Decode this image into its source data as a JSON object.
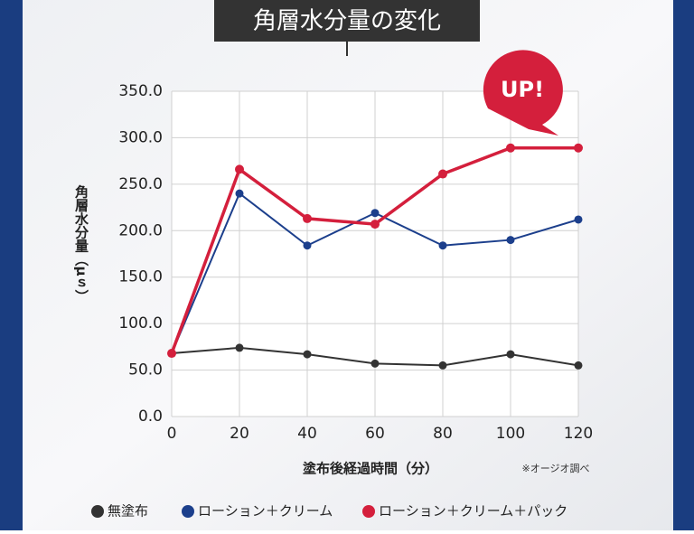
{
  "chart_data": {
    "type": "line",
    "title": "角層水分量の変化",
    "annotation": "UP!",
    "x_label": "塗布後経過時間（分）",
    "y_label": "角層水分量（μｓ）",
    "note": "※オージオ調べ",
    "x": [
      0,
      20,
      40,
      60,
      80,
      100,
      120
    ],
    "xlim": [
      0,
      120
    ],
    "xticks": [
      0,
      20,
      40,
      60,
      80,
      100,
      120
    ],
    "ylim": [
      0,
      350
    ],
    "yticks": [
      {
        "value": 0,
        "label": "0.0"
      },
      {
        "value": 50,
        "label": "50.0"
      },
      {
        "value": 100,
        "label": "100.0"
      },
      {
        "value": 150,
        "label": "150.0"
      },
      {
        "value": 200,
        "label": "200.0"
      },
      {
        "value": 250,
        "label": "250.0"
      },
      {
        "value": 300,
        "label": "300.0"
      },
      {
        "value": 350,
        "label": "350.0"
      }
    ],
    "grid": true,
    "series": [
      {
        "name": "無塗布",
        "color": "#333333",
        "values": [
          68,
          74,
          67,
          57,
          55,
          67,
          55
        ]
      },
      {
        "name": "ローション＋クリーム",
        "color": "#1c3f8c",
        "values": [
          68,
          240,
          184,
          219,
          184,
          190,
          212
        ]
      },
      {
        "name": "ローション＋クリーム＋パック",
        "color": "#d41f3c",
        "values": [
          68,
          266,
          213,
          207,
          261,
          289,
          289
        ]
      }
    ]
  }
}
